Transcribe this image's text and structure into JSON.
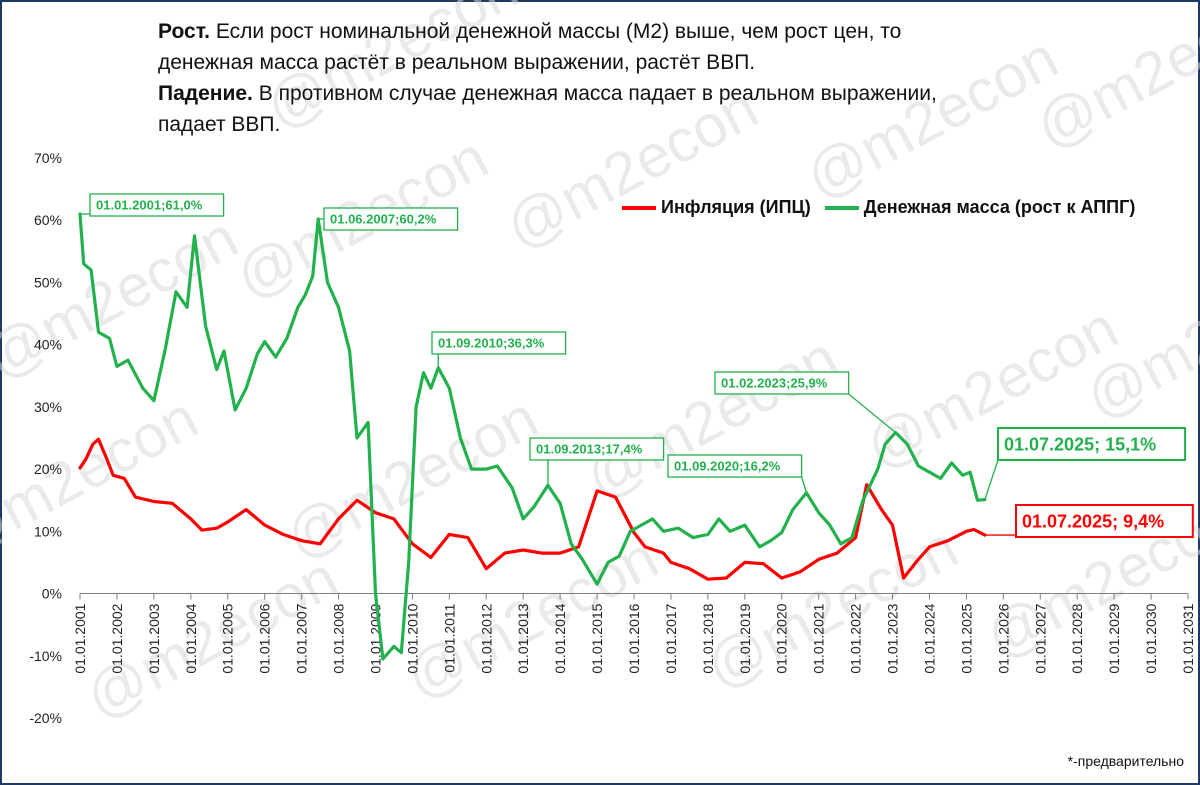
{
  "caption": {
    "line1_bold": "Рост.",
    "line1_rest": " Если рост номинальной денежной массы (М2) выше, чем рост цен,  то",
    "line2": "денежная масса растёт в реальном выражении, растёт ВВП.",
    "line3_bold": "Падение.",
    "line3_rest": " В противном случае денежная масса падает в реальном выражении,",
    "line4": "падает ВВП."
  },
  "legend": {
    "inflation": "Инфляция (ИПЦ)",
    "money": "Денежная масса (рост к АППГ)"
  },
  "footnote": "*-предварительно",
  "watermark": "@m2econ",
  "colors": {
    "inflation": "#ff0000",
    "money": "#22b14c",
    "frame": "#1f3864"
  },
  "chart_data": {
    "type": "line",
    "ylim": [
      -20,
      70
    ],
    "yticks": [
      "70%",
      "60%",
      "50%",
      "40%",
      "30%",
      "20%",
      "10%",
      "0%",
      "-10%",
      "-20%"
    ],
    "ytick_values": [
      70,
      60,
      50,
      40,
      30,
      20,
      10,
      0,
      -10,
      -20
    ],
    "xticks": [
      "01.01.2001",
      "01.01.2002",
      "01.01.2003",
      "01.01.2004",
      "01.01.2005",
      "01.01.2006",
      "01.01.2007",
      "01.01.2008",
      "01.01.2009",
      "01.01.2010",
      "01.01.2011",
      "01.01.2012",
      "01.01.2013",
      "01.01.2014",
      "01.01.2015",
      "01.01.2016",
      "01.01.2017",
      "01.01.2018",
      "01.01.2019",
      "01.01.2020",
      "01.01.2021",
      "01.01.2022",
      "01.01.2023",
      "01.01.2024",
      "01.01.2025",
      "01.01.2026",
      "01.01.2027",
      "01.01.2028",
      "01.01.2029",
      "01.01.2030",
      "01.01.2031"
    ],
    "xtick_years": [
      2001,
      2002,
      2003,
      2004,
      2005,
      2006,
      2007,
      2008,
      2009,
      2010,
      2011,
      2012,
      2013,
      2014,
      2015,
      2016,
      2017,
      2018,
      2019,
      2020,
      2021,
      2022,
      2023,
      2024,
      2025,
      2026,
      2027,
      2028,
      2029,
      2030,
      2031
    ],
    "xrange": [
      2001,
      2031
    ],
    "series": [
      {
        "name": "Инфляция (ИПЦ)",
        "points": [
          [
            2001.0,
            20.2
          ],
          [
            2001.15,
            21.5
          ],
          [
            2001.35,
            24.0
          ],
          [
            2001.5,
            24.8
          ],
          [
            2001.7,
            22.0
          ],
          [
            2001.9,
            19.0
          ],
          [
            2002.2,
            18.5
          ],
          [
            2002.5,
            15.5
          ],
          [
            2003.0,
            14.8
          ],
          [
            2003.5,
            14.5
          ],
          [
            2004.0,
            12.0
          ],
          [
            2004.3,
            10.2
          ],
          [
            2004.7,
            10.5
          ],
          [
            2005.0,
            11.5
          ],
          [
            2005.5,
            13.5
          ],
          [
            2006.0,
            11.0
          ],
          [
            2006.5,
            9.5
          ],
          [
            2007.0,
            8.5
          ],
          [
            2007.5,
            8.0
          ],
          [
            2008.0,
            12.0
          ],
          [
            2008.5,
            15.0
          ],
          [
            2009.0,
            13.0
          ],
          [
            2009.5,
            12.0
          ],
          [
            2010.0,
            8.0
          ],
          [
            2010.5,
            5.8
          ],
          [
            2011.0,
            9.5
          ],
          [
            2011.5,
            9.0
          ],
          [
            2012.0,
            4.0
          ],
          [
            2012.5,
            6.5
          ],
          [
            2013.0,
            7.0
          ],
          [
            2013.5,
            6.5
          ],
          [
            2014.0,
            6.5
          ],
          [
            2014.5,
            7.5
          ],
          [
            2015.0,
            16.5
          ],
          [
            2015.5,
            15.5
          ],
          [
            2016.0,
            9.8
          ],
          [
            2016.3,
            7.5
          ],
          [
            2016.8,
            6.5
          ],
          [
            2017.0,
            5.0
          ],
          [
            2017.5,
            4.0
          ],
          [
            2018.0,
            2.3
          ],
          [
            2018.5,
            2.5
          ],
          [
            2019.0,
            5.0
          ],
          [
            2019.5,
            4.8
          ],
          [
            2020.0,
            2.5
          ],
          [
            2020.5,
            3.5
          ],
          [
            2021.0,
            5.5
          ],
          [
            2021.5,
            6.5
          ],
          [
            2022.0,
            9.0
          ],
          [
            2022.3,
            17.5
          ],
          [
            2022.7,
            13.5
          ],
          [
            2023.0,
            11.0
          ],
          [
            2023.3,
            2.5
          ],
          [
            2023.7,
            5.5
          ],
          [
            2024.0,
            7.5
          ],
          [
            2024.5,
            8.5
          ],
          [
            2025.0,
            10.0
          ],
          [
            2025.2,
            10.3
          ],
          [
            2025.5,
            9.4
          ]
        ]
      },
      {
        "name": "Денежная масса (рост к АППГ)",
        "points": [
          [
            2001.0,
            61.0
          ],
          [
            2001.1,
            53.0
          ],
          [
            2001.3,
            52.0
          ],
          [
            2001.5,
            42.0
          ],
          [
            2001.8,
            41.0
          ],
          [
            2002.0,
            36.5
          ],
          [
            2002.3,
            37.5
          ],
          [
            2002.7,
            33.0
          ],
          [
            2003.0,
            31.0
          ],
          [
            2003.3,
            39.0
          ],
          [
            2003.6,
            48.5
          ],
          [
            2003.9,
            46.0
          ],
          [
            2004.1,
            57.5
          ],
          [
            2004.4,
            43.0
          ],
          [
            2004.7,
            36.0
          ],
          [
            2004.9,
            39.0
          ],
          [
            2005.2,
            29.5
          ],
          [
            2005.5,
            33.0
          ],
          [
            2005.8,
            38.5
          ],
          [
            2006.0,
            40.5
          ],
          [
            2006.3,
            38.0
          ],
          [
            2006.6,
            41.0
          ],
          [
            2006.9,
            46.0
          ],
          [
            2007.1,
            48.0
          ],
          [
            2007.3,
            51.0
          ],
          [
            2007.45,
            60.2
          ],
          [
            2007.7,
            50.0
          ],
          [
            2008.0,
            46.0
          ],
          [
            2008.3,
            39.0
          ],
          [
            2008.5,
            25.0
          ],
          [
            2008.8,
            27.5
          ],
          [
            2009.0,
            0.0
          ],
          [
            2009.2,
            -10.5
          ],
          [
            2009.5,
            -8.5
          ],
          [
            2009.7,
            -9.5
          ],
          [
            2009.9,
            5.0
          ],
          [
            2010.1,
            30.0
          ],
          [
            2010.3,
            35.5
          ],
          [
            2010.5,
            33.0
          ],
          [
            2010.7,
            36.3
          ],
          [
            2011.0,
            33.0
          ],
          [
            2011.3,
            25.0
          ],
          [
            2011.6,
            20.0
          ],
          [
            2012.0,
            20.0
          ],
          [
            2012.3,
            20.5
          ],
          [
            2012.7,
            17.0
          ],
          [
            2013.0,
            12.0
          ],
          [
            2013.3,
            14.0
          ],
          [
            2013.67,
            17.4
          ],
          [
            2014.0,
            14.5
          ],
          [
            2014.3,
            8.0
          ],
          [
            2014.6,
            5.5
          ],
          [
            2015.0,
            1.5
          ],
          [
            2015.3,
            5.0
          ],
          [
            2015.6,
            6.0
          ],
          [
            2015.9,
            10.0
          ],
          [
            2016.2,
            11.0
          ],
          [
            2016.5,
            12.0
          ],
          [
            2016.8,
            10.0
          ],
          [
            2017.2,
            10.5
          ],
          [
            2017.6,
            9.0
          ],
          [
            2018.0,
            9.5
          ],
          [
            2018.3,
            12.0
          ],
          [
            2018.6,
            10.0
          ],
          [
            2019.0,
            11.0
          ],
          [
            2019.4,
            7.5
          ],
          [
            2019.7,
            8.5
          ],
          [
            2020.0,
            9.8
          ],
          [
            2020.3,
            13.5
          ],
          [
            2020.67,
            16.2
          ],
          [
            2021.0,
            13.0
          ],
          [
            2021.3,
            11.0
          ],
          [
            2021.6,
            8.0
          ],
          [
            2021.9,
            9.0
          ],
          [
            2022.2,
            15.0
          ],
          [
            2022.6,
            20.0
          ],
          [
            2022.8,
            24.0
          ],
          [
            2023.08,
            25.9
          ],
          [
            2023.4,
            24.0
          ],
          [
            2023.7,
            20.5
          ],
          [
            2024.0,
            19.5
          ],
          [
            2024.3,
            18.5
          ],
          [
            2024.6,
            21.0
          ],
          [
            2024.9,
            19.0
          ],
          [
            2025.1,
            19.5
          ],
          [
            2025.3,
            15.0
          ],
          [
            2025.5,
            15.1
          ]
        ]
      }
    ],
    "annotations": [
      {
        "series": 1,
        "x": 2001.0,
        "y": 61.0,
        "label": "01.01.2001;61,0%"
      },
      {
        "series": 1,
        "x": 2007.45,
        "y": 60.2,
        "label": "01.06.2007;60,2%"
      },
      {
        "series": 1,
        "x": 2010.7,
        "y": 36.3,
        "label": "01.09.2010;36,3%"
      },
      {
        "series": 1,
        "x": 2013.67,
        "y": 17.4,
        "label": "01.09.2013;17,4%"
      },
      {
        "series": 1,
        "x": 2020.67,
        "y": 16.2,
        "label": "01.09.2020;16,2%"
      },
      {
        "series": 1,
        "x": 2023.08,
        "y": 25.9,
        "label": "01.02.2023;25,9%"
      },
      {
        "series": 1,
        "x": 2025.5,
        "y": 15.1,
        "label": "01.07.2025; 15,1%"
      },
      {
        "series": 0,
        "x": 2025.5,
        "y": 9.4,
        "label": "01.07.2025; 9,4%"
      }
    ]
  }
}
